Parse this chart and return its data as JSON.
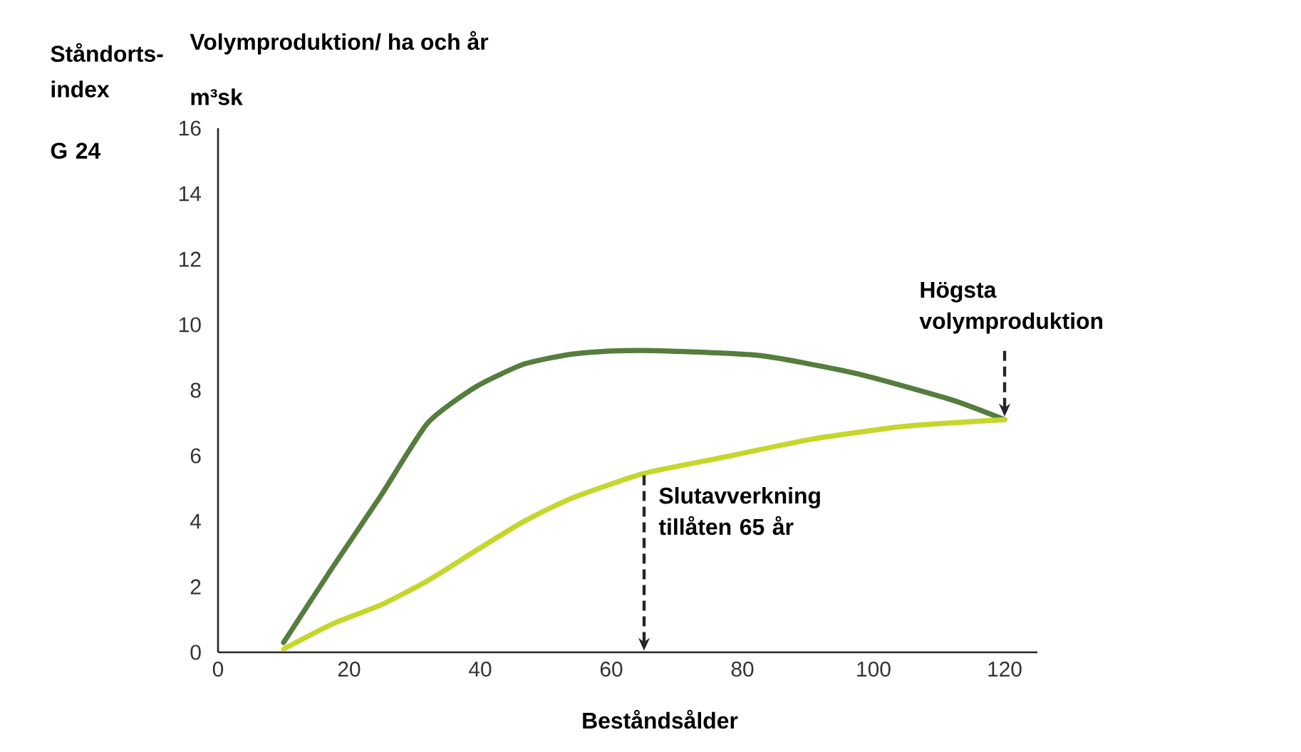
{
  "chart_data": {
    "type": "line",
    "title": "Volymproduktion/ ha och år",
    "ylabel": "m³sk",
    "xlabel": "Beståndsålder",
    "annotations": [
      "Ståndorts-index",
      "G 24",
      {
        "text": "Högsta volymproduktion",
        "x": 120,
        "y": 7.2
      },
      {
        "text": "Slutavverkning tillåten 65 år",
        "x": 65,
        "y": 5.4
      }
    ],
    "xlim": [
      0,
      125
    ],
    "ylim": [
      0,
      16
    ],
    "xticks": [
      0,
      20,
      40,
      60,
      80,
      100,
      120
    ],
    "yticks": [
      0,
      2,
      4,
      6,
      8,
      10,
      12,
      14,
      16
    ],
    "series": [
      {
        "color": "#557d3e",
        "x": [
          10,
          17.5,
          24.9,
          32,
          39.3,
          46.7,
          53.9,
          60,
          68.5,
          83,
          97.6,
          112,
          120
        ],
        "values": [
          0.3,
          2.6,
          4.8,
          7.0,
          8.1,
          8.8,
          9.1,
          9.2,
          9.2,
          9.05,
          8.5,
          7.7,
          7.1
        ]
      },
      {
        "color": "#c5d62c",
        "x": [
          10,
          17.5,
          24.9,
          32.1,
          39.3,
          46.7,
          53.9,
          64.8,
          75.8,
          90.4,
          104.8,
          120
        ],
        "values": [
          0.1,
          0.87,
          1.45,
          2.2,
          3.1,
          4.0,
          4.7,
          5.45,
          5.9,
          6.5,
          6.9,
          7.1
        ]
      }
    ]
  }
}
